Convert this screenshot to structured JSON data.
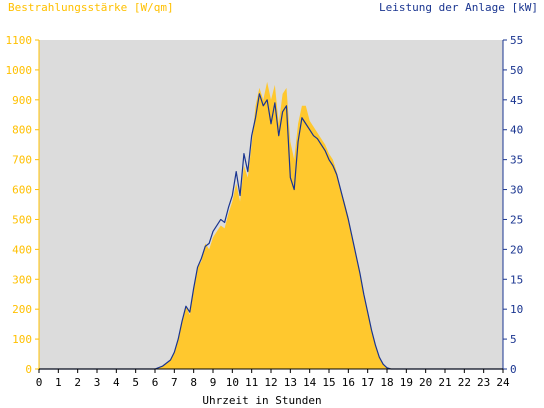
{
  "chart_data": {
    "type": "area",
    "left_axis_title": "Bestrahlungsstärke [W/qm]",
    "right_axis_title": "Leistung der Anlage [kW]",
    "xlabel": "Uhrzeit in Stunden",
    "xlim": [
      0,
      24
    ],
    "x_ticks": [
      "0",
      "1",
      "2",
      "3",
      "4",
      "5",
      "6",
      "7",
      "8",
      "9",
      "10",
      "11",
      "12",
      "13",
      "14",
      "15",
      "16",
      "17",
      "18",
      "19",
      "20",
      "21",
      "22",
      "23",
      "24"
    ],
    "y_left_lim": [
      0,
      1100
    ],
    "y_left_ticks": [
      "0",
      "100",
      "200",
      "300",
      "400",
      "500",
      "600",
      "700",
      "800",
      "900",
      "1000",
      "1100"
    ],
    "y_right_lim": [
      0,
      55
    ],
    "y_right_ticks": [
      "0",
      "5",
      "10",
      "15",
      "20",
      "25",
      "30",
      "35",
      "40",
      "45",
      "50",
      "55"
    ],
    "grid": false,
    "colors": {
      "irradiance": "#ffc82e",
      "power": "#1a3590",
      "plot_background": "#dcdcdc",
      "left_axis": "#ffc000",
      "right_axis": "#1a3590"
    },
    "series": [
      {
        "name": "Bestrahlungsstärke [W/qm]",
        "axis": "left",
        "style": "filled-area",
        "x": [
          0,
          6.0,
          6.4,
          6.8,
          7.0,
          7.2,
          7.4,
          7.6,
          7.8,
          8.0,
          8.2,
          8.4,
          8.6,
          8.8,
          9.0,
          9.2,
          9.4,
          9.6,
          9.8,
          10.0,
          10.2,
          10.4,
          10.6,
          10.8,
          11.0,
          11.2,
          11.4,
          11.6,
          11.8,
          12.0,
          12.2,
          12.4,
          12.6,
          12.8,
          13.0,
          13.2,
          13.4,
          13.6,
          13.8,
          14.0,
          14.2,
          14.4,
          14.6,
          14.8,
          15.0,
          15.2,
          15.4,
          15.6,
          15.8,
          16.0,
          16.2,
          16.4,
          16.6,
          16.8,
          17.0,
          17.2,
          17.4,
          17.6,
          17.8,
          18.0,
          18.2,
          18.4,
          24
        ],
        "values": [
          0,
          0,
          10,
          30,
          55,
          100,
          160,
          210,
          180,
          270,
          340,
          360,
          420,
          400,
          440,
          460,
          480,
          470,
          520,
          560,
          620,
          560,
          680,
          640,
          750,
          880,
          940,
          900,
          960,
          900,
          950,
          820,
          920,
          940,
          760,
          700,
          820,
          880,
          880,
          830,
          810,
          790,
          770,
          750,
          720,
          700,
          660,
          600,
          560,
          510,
          440,
          380,
          320,
          250,
          190,
          130,
          80,
          40,
          15,
          5,
          2,
          0,
          0
        ]
      },
      {
        "name": "Leistung der Anlage [kW]",
        "axis": "right",
        "style": "line",
        "x": [
          0,
          6.0,
          6.4,
          6.8,
          7.0,
          7.2,
          7.4,
          7.6,
          7.8,
          8.0,
          8.2,
          8.4,
          8.6,
          8.8,
          9.0,
          9.2,
          9.4,
          9.6,
          9.8,
          10.0,
          10.2,
          10.4,
          10.6,
          10.8,
          11.0,
          11.2,
          11.4,
          11.6,
          11.8,
          12.0,
          12.2,
          12.4,
          12.6,
          12.8,
          13.0,
          13.2,
          13.4,
          13.6,
          13.8,
          14.0,
          14.2,
          14.4,
          14.6,
          14.8,
          15.0,
          15.2,
          15.4,
          15.6,
          15.8,
          16.0,
          16.2,
          16.4,
          16.6,
          16.8,
          17.0,
          17.2,
          17.4,
          17.6,
          17.8,
          18.0,
          18.2,
          18.4,
          24
        ],
        "values": [
          0,
          0,
          0.5,
          1.5,
          2.8,
          5,
          8,
          10.5,
          9.5,
          13.5,
          17,
          18.5,
          20.5,
          21,
          23,
          24,
          25,
          24.5,
          27,
          29,
          33,
          29,
          36,
          33,
          39,
          42,
          46,
          44,
          45,
          41,
          44.5,
          39,
          43,
          44,
          32,
          30,
          38,
          42,
          41,
          40,
          39,
          38.5,
          37.5,
          36.5,
          35,
          34,
          32.5,
          30,
          27.5,
          25,
          22,
          19,
          16,
          12.5,
          9.5,
          6.5,
          4,
          2,
          0.8,
          0.2,
          0,
          0,
          0
        ]
      }
    ]
  }
}
